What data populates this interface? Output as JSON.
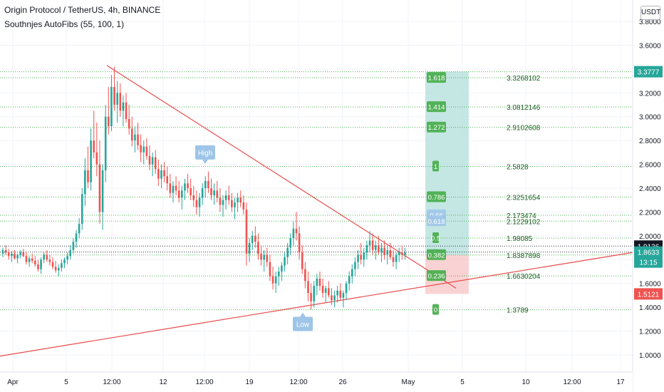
{
  "header": {
    "symbol_title": "Origin Protocol / TetherUS, 4h, BINANCE",
    "indicator_label": "Southnjes AutoFibs (55, 100, 1)",
    "currency_button": "USDT"
  },
  "colors": {
    "up": "#26a69a",
    "down": "#ef5350",
    "trendline": "#e84b4b",
    "fib_line": "#4caf50",
    "fib_box_fill": "#4caf50",
    "target_zone": "#b2dfdb",
    "stop_zone": "#f8c8c8",
    "badge_blue": "#9ec5e8"
  },
  "chart_data": {
    "type": "candlestick",
    "y_ticks": [
      "3.8000",
      "3.6000",
      "3.4000",
      "3.2000",
      "3.0000",
      "2.8000",
      "2.6000",
      "2.4000",
      "2.2000",
      "2.0000",
      "1.8000",
      "1.6000",
      "1.4000",
      "1.2000",
      "1.0000"
    ],
    "ylim": [
      0.88,
      3.92
    ],
    "x_ticks": [
      "Apr",
      "5",
      "12:00",
      "12",
      "12:00",
      "19",
      "12:00",
      "26",
      "May",
      "5",
      "10",
      "12:00",
      "17"
    ],
    "price_labels": [
      {
        "text": "3.3777",
        "value": 3.3777,
        "color": "#26a69a"
      },
      {
        "text": "1.9136",
        "value": 1.9136,
        "color": "#131722"
      },
      {
        "text": "1.8633",
        "value": 1.8633,
        "color": "#26a69a",
        "sub": "13:15"
      },
      {
        "text": "1.5121",
        "value": 1.5121,
        "color": "#ef5350"
      }
    ],
    "fib_levels": [
      {
        "ratio": "1.618",
        "price": "3.3268102",
        "value": 3.3268
      },
      {
        "ratio": "1.414",
        "price": "3.0812146",
        "value": 3.0812
      },
      {
        "ratio": "1.272",
        "price": "2.9102608",
        "value": 2.9103
      },
      {
        "ratio": "1",
        "price": "2.5828",
        "value": 2.5828
      },
      {
        "ratio": "0.786",
        "price": "2.3251654",
        "value": 2.3252
      },
      {
        "ratio": "0.66",
        "price": "2.173474",
        "value": 2.1735
      },
      {
        "ratio": "0.618",
        "price": "2.1229102",
        "value": 2.1229
      },
      {
        "ratio": "0.5",
        "price": "1.98085",
        "value": 1.9809
      },
      {
        "ratio": "0.382",
        "price": "1.8387898",
        "value": 1.8388
      },
      {
        "ratio": "0.236",
        "price": "1.6630204",
        "value": 1.663
      },
      {
        "ratio": "0",
        "price": "1.3789",
        "value": 1.3789
      }
    ],
    "markers": [
      {
        "text": "High",
        "value": 2.58
      },
      {
        "text": "Low",
        "value": 1.38
      }
    ],
    "candles": [
      [
        1.85,
        1.9,
        1.82,
        1.88
      ],
      [
        1.88,
        1.92,
        1.84,
        1.86
      ],
      [
        1.86,
        1.89,
        1.8,
        1.83
      ],
      [
        1.83,
        1.87,
        1.78,
        1.85
      ],
      [
        1.85,
        1.88,
        1.8,
        1.81
      ],
      [
        1.81,
        1.85,
        1.77,
        1.84
      ],
      [
        1.84,
        1.88,
        1.81,
        1.86
      ],
      [
        1.86,
        1.89,
        1.82,
        1.83
      ],
      [
        1.83,
        1.86,
        1.76,
        1.78
      ],
      [
        1.78,
        1.83,
        1.74,
        1.81
      ],
      [
        1.81,
        1.85,
        1.77,
        1.79
      ],
      [
        1.79,
        1.83,
        1.74,
        1.76
      ],
      [
        1.76,
        1.8,
        1.7,
        1.72
      ],
      [
        1.72,
        1.82,
        1.68,
        1.8
      ],
      [
        1.8,
        1.86,
        1.77,
        1.84
      ],
      [
        1.84,
        1.88,
        1.78,
        1.8
      ],
      [
        1.8,
        1.84,
        1.75,
        1.78
      ],
      [
        1.78,
        1.82,
        1.72,
        1.74
      ],
      [
        1.74,
        1.79,
        1.69,
        1.71
      ],
      [
        1.71,
        1.76,
        1.66,
        1.73
      ],
      [
        1.73,
        1.8,
        1.7,
        1.77
      ],
      [
        1.77,
        1.82,
        1.73,
        1.8
      ],
      [
        1.8,
        1.86,
        1.76,
        1.83
      ],
      [
        1.83,
        1.92,
        1.8,
        1.88
      ],
      [
        1.88,
        1.98,
        1.85,
        1.95
      ],
      [
        1.95,
        2.05,
        1.9,
        2.02
      ],
      [
        2.02,
        2.15,
        1.98,
        2.1
      ],
      [
        2.1,
        2.4,
        2.05,
        2.35
      ],
      [
        2.35,
        2.65,
        2.25,
        2.55
      ],
      [
        2.55,
        2.75,
        2.4,
        2.45
      ],
      [
        2.45,
        2.9,
        2.38,
        2.8
      ],
      [
        2.8,
        3.05,
        2.65,
        2.7
      ],
      [
        2.7,
        2.95,
        2.5,
        2.6
      ],
      [
        2.6,
        2.8,
        2.1,
        2.2
      ],
      [
        2.2,
        2.6,
        2.05,
        2.55
      ],
      [
        2.55,
        3.1,
        2.45,
        3.0
      ],
      [
        3.0,
        3.25,
        2.85,
        2.92
      ],
      [
        2.92,
        3.35,
        2.88,
        3.25
      ],
      [
        3.25,
        3.42,
        3.05,
        3.1
      ],
      [
        3.1,
        3.3,
        2.95,
        3.2
      ],
      [
        3.2,
        3.28,
        3.0,
        3.05
      ],
      [
        3.05,
        3.18,
        2.92,
        3.12
      ],
      [
        3.12,
        3.2,
        2.95,
        2.98
      ],
      [
        2.98,
        3.1,
        2.85,
        2.9
      ],
      [
        2.9,
        3.0,
        2.75,
        2.8
      ],
      [
        2.8,
        2.92,
        2.7,
        2.85
      ],
      [
        2.85,
        2.95,
        2.72,
        2.76
      ],
      [
        2.76,
        2.85,
        2.62,
        2.7
      ],
      [
        2.7,
        2.8,
        2.6,
        2.75
      ],
      [
        2.75,
        2.82,
        2.64,
        2.67
      ],
      [
        2.67,
        2.76,
        2.55,
        2.6
      ],
      [
        2.6,
        2.7,
        2.5,
        2.66
      ],
      [
        2.66,
        2.72,
        2.52,
        2.56
      ],
      [
        2.56,
        2.64,
        2.42,
        2.48
      ],
      [
        2.48,
        2.6,
        2.4,
        2.55
      ],
      [
        2.55,
        2.62,
        2.45,
        2.5
      ],
      [
        2.5,
        2.58,
        2.38,
        2.44
      ],
      [
        2.44,
        2.52,
        2.32,
        2.36
      ],
      [
        2.36,
        2.46,
        2.28,
        2.42
      ],
      [
        2.42,
        2.5,
        2.34,
        2.38
      ],
      [
        2.38,
        2.46,
        2.28,
        2.32
      ],
      [
        2.32,
        2.42,
        2.22,
        2.38
      ],
      [
        2.38,
        2.48,
        2.3,
        2.44
      ],
      [
        2.44,
        2.52,
        2.36,
        2.4
      ],
      [
        2.4,
        2.48,
        2.3,
        2.34
      ],
      [
        2.34,
        2.42,
        2.24,
        2.3
      ],
      [
        2.3,
        2.38,
        2.18,
        2.24
      ],
      [
        2.24,
        2.36,
        2.16,
        2.32
      ],
      [
        2.32,
        2.44,
        2.26,
        2.4
      ],
      [
        2.4,
        2.5,
        2.32,
        2.46
      ],
      [
        2.46,
        2.54,
        2.36,
        2.4
      ],
      [
        2.4,
        2.48,
        2.3,
        2.34
      ],
      [
        2.34,
        2.44,
        2.26,
        2.38
      ],
      [
        2.38,
        2.46,
        2.28,
        2.32
      ],
      [
        2.32,
        2.4,
        2.2,
        2.26
      ],
      [
        2.26,
        2.34,
        2.16,
        2.3
      ],
      [
        2.3,
        2.38,
        2.22,
        2.34
      ],
      [
        2.34,
        2.42,
        2.26,
        2.3
      ],
      [
        2.3,
        2.36,
        2.2,
        2.24
      ],
      [
        2.24,
        2.32,
        2.14,
        2.28
      ],
      [
        2.28,
        2.36,
        2.2,
        2.32
      ],
      [
        2.32,
        2.38,
        2.24,
        2.28
      ],
      [
        2.28,
        2.34,
        2.18,
        2.22
      ],
      [
        2.22,
        2.28,
        1.75,
        1.85
      ],
      [
        1.85,
        1.98,
        1.78,
        1.94
      ],
      [
        1.94,
        2.04,
        1.88,
        2.0
      ],
      [
        2.0,
        2.08,
        1.9,
        1.95
      ],
      [
        1.95,
        2.02,
        1.8,
        1.85
      ],
      [
        1.85,
        1.92,
        1.75,
        1.8
      ],
      [
        1.8,
        1.88,
        1.7,
        1.84
      ],
      [
        1.84,
        1.9,
        1.74,
        1.78
      ],
      [
        1.78,
        1.84,
        1.62,
        1.66
      ],
      [
        1.66,
        1.74,
        1.55,
        1.6
      ],
      [
        1.6,
        1.7,
        1.52,
        1.66
      ],
      [
        1.66,
        1.74,
        1.58,
        1.7
      ],
      [
        1.7,
        1.78,
        1.62,
        1.75
      ],
      [
        1.75,
        1.86,
        1.7,
        1.82
      ],
      [
        1.82,
        1.94,
        1.76,
        1.9
      ],
      [
        1.9,
        2.02,
        1.84,
        1.98
      ],
      [
        1.98,
        2.12,
        1.92,
        2.06
      ],
      [
        2.06,
        2.2,
        1.96,
        2.02
      ],
      [
        2.02,
        2.08,
        1.8,
        1.86
      ],
      [
        1.86,
        1.92,
        1.68,
        1.72
      ],
      [
        1.72,
        1.78,
        1.56,
        1.62
      ],
      [
        1.62,
        1.7,
        1.45,
        1.52
      ],
      [
        1.52,
        1.6,
        1.38,
        1.45
      ],
      [
        1.45,
        1.62,
        1.4,
        1.58
      ],
      [
        1.58,
        1.68,
        1.5,
        1.64
      ],
      [
        1.64,
        1.7,
        1.54,
        1.58
      ],
      [
        1.58,
        1.64,
        1.48,
        1.52
      ],
      [
        1.52,
        1.58,
        1.44,
        1.56
      ],
      [
        1.56,
        1.62,
        1.48,
        1.5
      ],
      [
        1.5,
        1.56,
        1.42,
        1.46
      ],
      [
        1.46,
        1.54,
        1.4,
        1.5
      ],
      [
        1.5,
        1.58,
        1.44,
        1.54
      ],
      [
        1.54,
        1.6,
        1.46,
        1.48
      ],
      [
        1.48,
        1.54,
        1.4,
        1.52
      ],
      [
        1.52,
        1.62,
        1.46,
        1.6
      ],
      [
        1.6,
        1.7,
        1.54,
        1.66
      ],
      [
        1.66,
        1.76,
        1.6,
        1.72
      ],
      [
        1.72,
        1.82,
        1.66,
        1.78
      ],
      [
        1.78,
        1.88,
        1.72,
        1.84
      ],
      [
        1.84,
        1.94,
        1.76,
        1.8
      ],
      [
        1.8,
        1.9,
        1.74,
        1.86
      ],
      [
        1.86,
        1.96,
        1.8,
        1.92
      ],
      [
        1.92,
        2.04,
        1.86,
        1.96
      ],
      [
        1.96,
        2.02,
        1.84,
        1.88
      ],
      [
        1.88,
        1.96,
        1.8,
        1.92
      ],
      [
        1.92,
        2.0,
        1.84,
        1.86
      ],
      [
        1.86,
        1.94,
        1.78,
        1.9
      ],
      [
        1.9,
        1.96,
        1.8,
        1.84
      ],
      [
        1.84,
        1.92,
        1.76,
        1.88
      ],
      [
        1.88,
        1.94,
        1.8,
        1.82
      ],
      [
        1.82,
        1.88,
        1.74,
        1.78
      ],
      [
        1.78,
        1.86,
        1.72,
        1.84
      ],
      [
        1.84,
        1.9,
        1.78,
        1.86
      ],
      [
        1.86,
        1.92,
        1.8,
        1.84
      ],
      [
        1.84,
        1.9,
        1.8,
        1.86
      ]
    ]
  }
}
